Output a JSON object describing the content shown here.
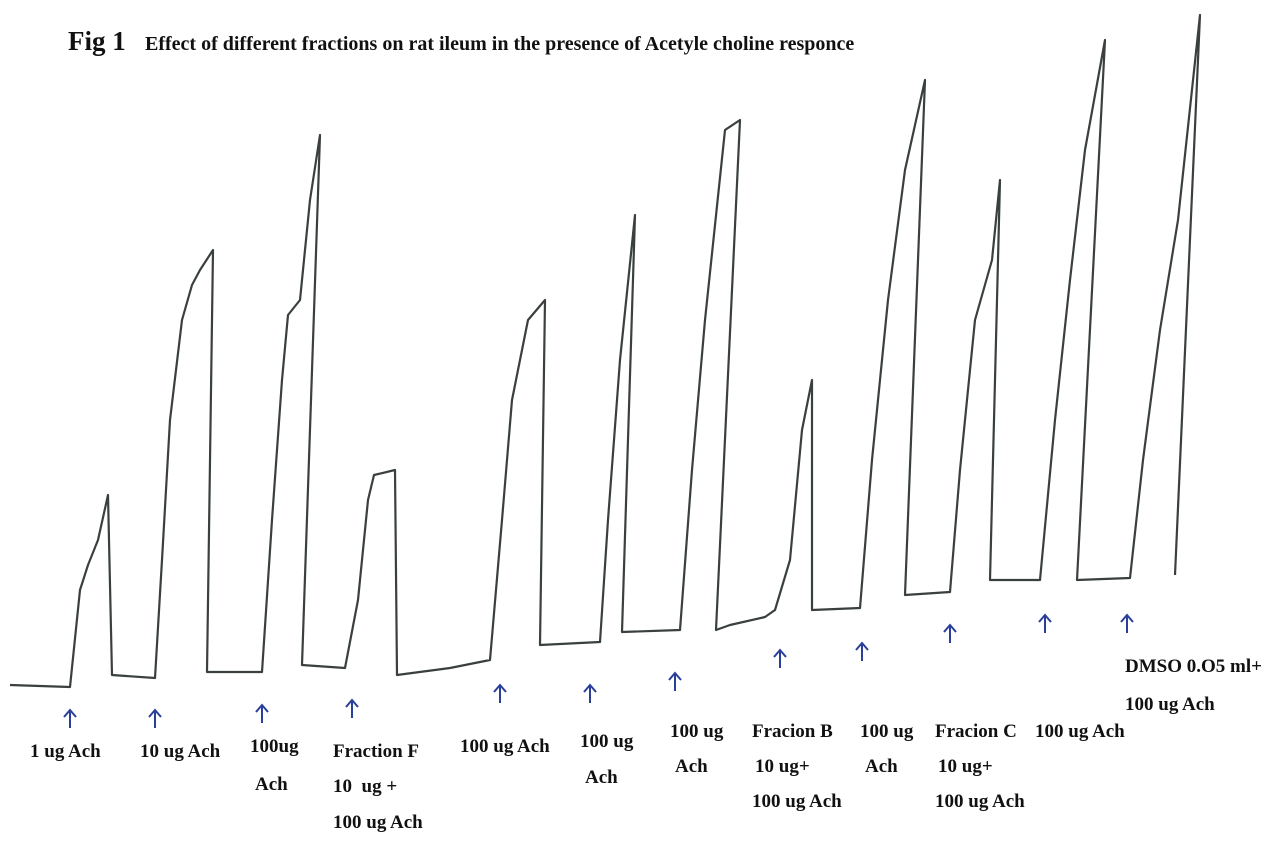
{
  "figure_number": "Fig 1",
  "caption": "Effect of different fractions on rat ileum in the presence of Acetyle choline responce",
  "labels": [
    [
      "1 ug Ach"
    ],
    [
      "10 ug Ach"
    ],
    [
      "100ug",
      "Ach"
    ],
    [
      "Fraction F",
      "10  ug +",
      "100 ug Ach"
    ],
    [
      "100 ug Ach"
    ],
    [
      "100 ug",
      "Ach"
    ],
    [
      "100 ug",
      "Ach"
    ],
    [
      "Fracion B",
      "10 ug+",
      "100 ug Ach"
    ],
    [
      "100 ug",
      "Ach"
    ],
    [
      "Fracion C",
      "10 ug+",
      "100 ug Ach"
    ],
    [
      "100 ug Ach"
    ],
    [
      "DMSO 0.O5 ml+",
      "100 ug Ach"
    ]
  ]
}
